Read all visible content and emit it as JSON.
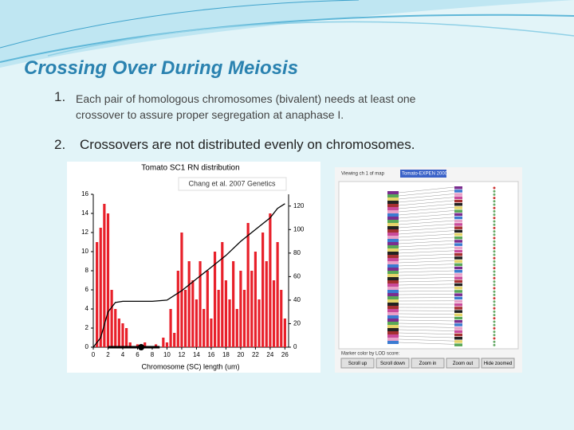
{
  "slide": {
    "title": "Crossing Over During Meiosis",
    "items": [
      {
        "number": "1.",
        "text": "Each pair of homologous chromosomes (bivalent) needs at least one crossover to assure proper segregation at anaphase I."
      },
      {
        "number": "2.",
        "text": "Crossovers are not distributed evenly on chromosomes."
      }
    ]
  },
  "chart_data": {
    "type": "bar",
    "title": "Tomato SC1 RN distribution",
    "annotation": "Chang et al. 2007 Genetics",
    "x_label": "Chromosome (SC) length (um)",
    "color": "#e8202a",
    "x": [
      0.5,
      1,
      1.5,
      2,
      2.5,
      3,
      3.5,
      4,
      4.5,
      5,
      5.5,
      6,
      6.5,
      7,
      7.5,
      8,
      8.5,
      9,
      9.5,
      10,
      10.5,
      11,
      11.5,
      12,
      12.5,
      13,
      13.5,
      14,
      14.5,
      15,
      15.5,
      16,
      16.5,
      17,
      17.5,
      18,
      18.5,
      19,
      19.5,
      20,
      20.5,
      21,
      21.5,
      22,
      22.5,
      23,
      23.5,
      24,
      24.5,
      25,
      25.5,
      26
    ],
    "values": [
      11,
      12.5,
      15,
      14,
      6,
      4,
      3,
      2.5,
      2,
      0.5,
      0,
      0.3,
      0,
      0.5,
      0,
      0,
      0.3,
      0,
      1,
      0.5,
      4,
      1.5,
      8,
      12,
      6,
      9,
      7,
      5,
      9,
      4,
      8,
      3,
      10,
      6,
      11,
      7,
      5,
      9,
      4,
      8,
      6,
      13,
      8,
      10,
      5,
      12,
      9,
      14,
      7,
      11,
      6,
      3
    ],
    "line_color": "#000000",
    "line_x": [
      0,
      1,
      2,
      3,
      4,
      6,
      8,
      10,
      12,
      14,
      16,
      18,
      20,
      22,
      24,
      25,
      26
    ],
    "line_values": [
      0,
      8,
      30,
      38,
      39,
      39,
      39,
      40,
      48,
      58,
      68,
      78,
      90,
      100,
      110,
      118,
      122
    ],
    "xlim": [
      0,
      26.5
    ],
    "xticks": [
      0,
      2,
      4,
      6,
      8,
      10,
      12,
      14,
      16,
      18,
      20,
      22,
      24,
      26
    ],
    "ylim": [
      0,
      16
    ],
    "yticks": [
      0,
      2,
      4,
      6,
      8,
      10,
      12,
      14,
      16
    ],
    "y2lim": [
      0,
      130
    ],
    "y2ticks": [
      0,
      20,
      40,
      60,
      80,
      100,
      120
    ]
  },
  "map_screenshot": {
    "header": "Viewing ch 1 of map",
    "map_name": "Tomato-EXPEN 2000",
    "footer": "Marker color by LOD score:",
    "buttons": [
      "Scroll up",
      "Scroll down",
      "Zoom in",
      "Zoom out",
      "Hide zoomed"
    ]
  }
}
